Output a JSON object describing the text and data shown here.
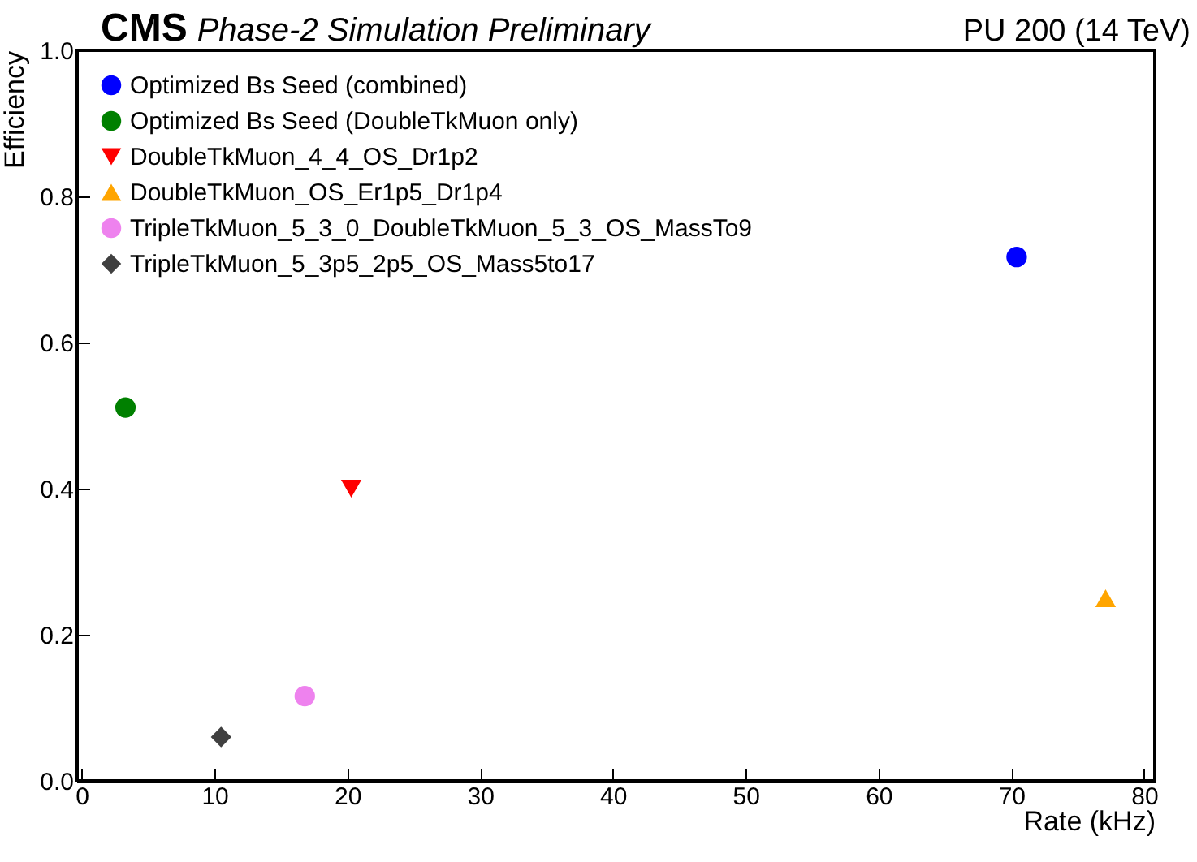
{
  "chart_data": {
    "type": "scatter",
    "title": "CMS",
    "subtitle": "Phase-2 Simulation Preliminary",
    "annotations": [
      "PU 200 (14 TeV)"
    ],
    "xlabel": "Rate (kHz)",
    "ylabel": "Efficiency",
    "xlim": [
      -0.4,
      80.8
    ],
    "xticks": [
      0,
      10,
      20,
      30,
      40,
      50,
      60,
      70,
      80
    ],
    "ylim": [
      0,
      1
    ],
    "yticks": [
      {
        "value": 0,
        "label": "0.0"
      },
      0.2,
      0.4,
      0.6,
      0.8,
      {
        "value": 1,
        "label": "1.0"
      }
    ],
    "legend": "top left",
    "grid": false,
    "series": [
      {
        "name": "Optimized Bs Seed (combined)",
        "color": "#0000ff",
        "marker": "circle",
        "x": [
          70.4
        ],
        "values": [
          0.717
        ]
      },
      {
        "name": "Optimized Bs Seed (DoubleTkMuon only)",
        "color": "#008000",
        "x": [
          3.3
        ],
        "values": [
          0.511
        ]
      },
      {
        "name": "DoubleTkMuon_4_4_OS_Dr1p2",
        "color": "#ff0000",
        "marker": "triangle-down",
        "x": [
          20.3
        ],
        "values": [
          0.4
        ]
      },
      {
        "name": "DoubleTkMuon_OS_Er1p5_Dr1p4",
        "color": "#ffa500",
        "marker": "triangle",
        "x": [
          77.1
        ],
        "values": [
          0.25
        ]
      },
      {
        "name": "TripleTkMuon_5_3_0_DoubleTkMuon_5_3_OS_MassTo9",
        "color": "#ee82ee",
        "x": [
          16.8
        ],
        "values": [
          0.116
        ]
      },
      {
        "name": "TripleTkMuon_5_3p5_2p5_OS_Mass5to17",
        "color": "#404040",
        "marker": "diamond",
        "x": [
          10.5
        ],
        "values": [
          0.06
        ]
      }
    ]
  }
}
